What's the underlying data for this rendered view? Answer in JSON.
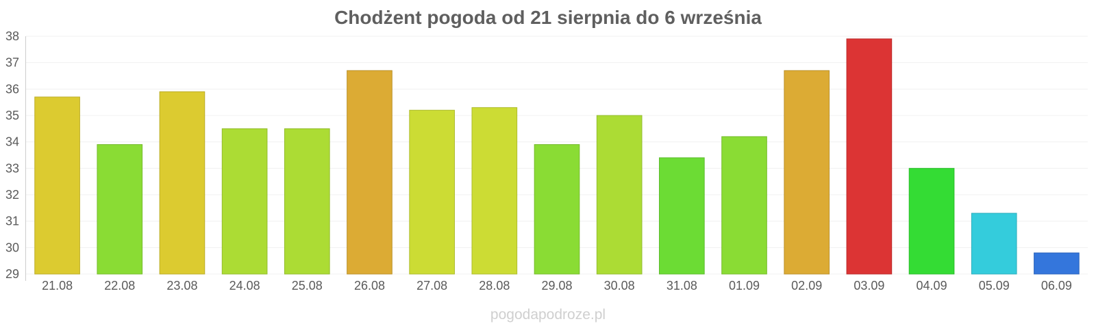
{
  "chart_data": {
    "type": "bar",
    "title": "Chodżent pogoda od 21 sierpnia do 6 września",
    "categories": [
      "21.08",
      "22.08",
      "23.08",
      "24.08",
      "25.08",
      "26.08",
      "27.08",
      "28.08",
      "29.08",
      "30.08",
      "31.08",
      "01.09",
      "02.09",
      "03.09",
      "04.09",
      "05.09",
      "06.09"
    ],
    "values": [
      35.7,
      33.9,
      35.9,
      34.5,
      34.5,
      36.7,
      35.2,
      35.3,
      33.9,
      35.0,
      33.4,
      34.2,
      36.7,
      37.9,
      33.0,
      31.3,
      29.8
    ],
    "colors": [
      "#dccb30",
      "#8adc34",
      "#dccb30",
      "#acdc34",
      "#acdc34",
      "#dcab34",
      "#ccdc34",
      "#ccdc34",
      "#8adc34",
      "#acdc34",
      "#6cdc34",
      "#8adc34",
      "#dcab34",
      "#dc3434",
      "#34dc34",
      "#34ccdc",
      "#3476dc"
    ],
    "ylim": [
      29,
      38
    ],
    "yticks": [
      29,
      30,
      31,
      32,
      33,
      34,
      35,
      36,
      37,
      38
    ],
    "grid": true,
    "xlabel": "",
    "ylabel": ""
  },
  "watermark": "pogodapodroze.pl"
}
